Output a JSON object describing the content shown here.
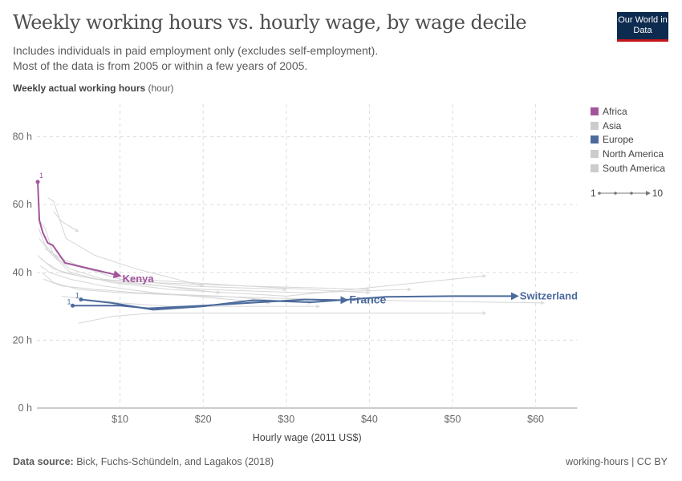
{
  "title": "Weekly working hours vs. hourly wage, by wage decile",
  "subtitle": [
    "Includes individuals in paid employment only (excludes self-employment).",
    "Most of the data is from 2005 or within a few years of 2005."
  ],
  "logo": "Our World in Data",
  "footer": {
    "source_label": "Data source:",
    "source": "Bick, Fuchs-Schündeln, and Lagakos (2018)",
    "right": "working-hours | CC BY"
  },
  "legend": {
    "items": [
      {
        "name": "Africa",
        "color": "#a2559c"
      },
      {
        "name": "Asia",
        "color": "#cccccc"
      },
      {
        "name": "Europe",
        "color": "#4c6a9c"
      },
      {
        "name": "North America",
        "color": "#cccccc"
      },
      {
        "name": "South America",
        "color": "#cccccc"
      }
    ],
    "size_start": "1",
    "size_end": "10"
  },
  "chart_data": {
    "type": "line",
    "ylabel_bold": "Weekly actual working hours",
    "ylabel_unit": "(hour)",
    "xlabel": "Hourly wage (2011 US$)",
    "xlim": [
      0,
      65
    ],
    "ylim": [
      0,
      90
    ],
    "xticks": [
      {
        "v": 10,
        "l": "$10"
      },
      {
        "v": 20,
        "l": "$20"
      },
      {
        "v": 30,
        "l": "$30"
      },
      {
        "v": 40,
        "l": "$40"
      },
      {
        "v": 50,
        "l": "$50"
      },
      {
        "v": 60,
        "l": "$60"
      }
    ],
    "yticks": [
      {
        "v": 0,
        "l": "0 h"
      },
      {
        "v": 20,
        "l": "20 h"
      },
      {
        "v": 40,
        "l": "40 h"
      },
      {
        "v": 60,
        "l": "60 h"
      },
      {
        "v": 80,
        "l": "80 h"
      }
    ],
    "grid": true,
    "series": [
      {
        "name": "Kenya",
        "color": "#a2559c",
        "start_label": "1",
        "points": [
          [
            0.1,
            66.7
          ],
          [
            0.3,
            55.3
          ],
          [
            0.7,
            51.8
          ],
          [
            1.3,
            48.7
          ],
          [
            1.9,
            48
          ],
          [
            3.4,
            42.8
          ],
          [
            10,
            39
          ]
        ]
      },
      {
        "name": "France",
        "color": "#4c6a9c",
        "start_label": "1",
        "points": [
          [
            4.3,
            30.2
          ],
          [
            7,
            30.2
          ],
          [
            10,
            30.2
          ],
          [
            13.4,
            29.4
          ],
          [
            20,
            30.2
          ],
          [
            25.5,
            31
          ],
          [
            32.2,
            32
          ],
          [
            37.3,
            31.8
          ]
        ]
      },
      {
        "name": "Switzerland",
        "color": "#4c6a9c",
        "start_label": "1",
        "points": [
          [
            5.3,
            32
          ],
          [
            9,
            31
          ],
          [
            14,
            29
          ],
          [
            20,
            30
          ],
          [
            26,
            31.8
          ],
          [
            33,
            31.2
          ],
          [
            42,
            32.8
          ],
          [
            50,
            33
          ],
          [
            57.8,
            33
          ]
        ]
      }
    ],
    "background_series": [
      [
        [
          0.1,
          56
        ],
        [
          1,
          53
        ],
        [
          2,
          45
        ],
        [
          4,
          41
        ],
        [
          8,
          38
        ],
        [
          15,
          36
        ],
        [
          22,
          34
        ]
      ],
      [
        [
          1.3,
          62
        ],
        [
          2,
          61
        ],
        [
          3.5,
          50
        ],
        [
          7,
          45
        ],
        [
          12,
          41
        ],
        [
          20,
          36
        ]
      ],
      [
        [
          0.2,
          53
        ],
        [
          1,
          48
        ],
        [
          3,
          43
        ],
        [
          6,
          41
        ],
        [
          12,
          38
        ],
        [
          25,
          36
        ],
        [
          40,
          35
        ]
      ],
      [
        [
          0.3,
          50
        ],
        [
          1.5,
          46
        ],
        [
          4,
          40
        ],
        [
          9,
          37
        ],
        [
          16,
          35
        ],
        [
          30,
          33
        ],
        [
          54,
          39
        ]
      ],
      [
        [
          0.5,
          44
        ],
        [
          2,
          41
        ],
        [
          5,
          39
        ],
        [
          10,
          37
        ],
        [
          20,
          35
        ],
        [
          32,
          34
        ],
        [
          45,
          35
        ]
      ],
      [
        [
          0.4,
          42
        ],
        [
          1.5,
          40
        ],
        [
          4,
          38
        ],
        [
          8,
          36
        ],
        [
          14,
          34
        ],
        [
          28,
          31
        ]
      ],
      [
        [
          1,
          47
        ],
        [
          3,
          44
        ],
        [
          6,
          41
        ],
        [
          10,
          38
        ],
        [
          18,
          36
        ],
        [
          30,
          35
        ]
      ],
      [
        [
          0.6,
          40
        ],
        [
          2,
          37
        ],
        [
          5,
          35
        ],
        [
          10,
          34
        ],
        [
          20,
          33
        ],
        [
          35,
          32
        ],
        [
          61,
          31
        ]
      ],
      [
        [
          3,
          33
        ],
        [
          6,
          32
        ],
        [
          10,
          31
        ],
        [
          16,
          30
        ],
        [
          25,
          30
        ],
        [
          34,
          30
        ]
      ],
      [
        [
          5,
          25
        ],
        [
          9,
          27
        ],
        [
          14,
          28
        ],
        [
          22,
          28
        ],
        [
          36,
          28
        ],
        [
          54,
          28
        ]
      ],
      [
        [
          2,
          58
        ],
        [
          3,
          55
        ],
        [
          5,
          52
        ]
      ],
      [
        [
          0.1,
          45
        ],
        [
          1,
          43
        ],
        [
          3,
          40
        ],
        [
          7,
          38
        ],
        [
          14,
          37
        ],
        [
          25,
          36
        ],
        [
          40,
          34
        ]
      ],
      [
        [
          0.8,
          38
        ],
        [
          3,
          36
        ],
        [
          7,
          35
        ],
        [
          12,
          34
        ],
        [
          22,
          33
        ],
        [
          33,
          31
        ]
      ]
    ]
  }
}
